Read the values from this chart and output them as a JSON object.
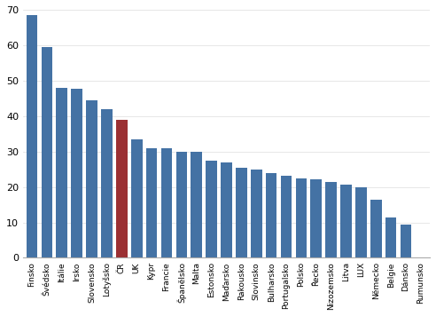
{
  "categories": [
    "Finsko",
    "Švédsko",
    "Itálie",
    "Irsko",
    "Slovensko",
    "Lotyšsko",
    "ČR",
    "UK",
    "Kypr",
    "Francie",
    "Španělsko",
    "Malta",
    "Estonsko",
    "Maďarsko",
    "Rakousko",
    "Slovinsko",
    "Bulharsko",
    "Portugalsko",
    "Polsko",
    "Řecko",
    "Nizozemsko",
    "Litva",
    "LUX",
    "Německo",
    "Belgie",
    "Dánsko",
    "Rumunsko"
  ],
  "values": [
    68.5,
    59.5,
    48.0,
    47.8,
    44.5,
    42.0,
    39.0,
    33.5,
    31.0,
    31.0,
    29.8,
    29.8,
    27.5,
    27.0,
    25.3,
    24.8,
    24.0,
    23.2,
    22.5,
    22.2,
    21.5,
    20.7,
    19.8,
    16.3,
    11.5,
    9.5,
    0
  ],
  "bar_color_default": "#4472A4",
  "bar_color_highlight": "#9B3033",
  "highlight_index": 6,
  "ylim": [
    0,
    70
  ],
  "yticks": [
    0,
    10,
    20,
    30,
    40,
    50,
    60,
    70
  ],
  "background_color": "#ffffff",
  "plot_background": "#ffffff",
  "border_color": "#aaaaaa"
}
